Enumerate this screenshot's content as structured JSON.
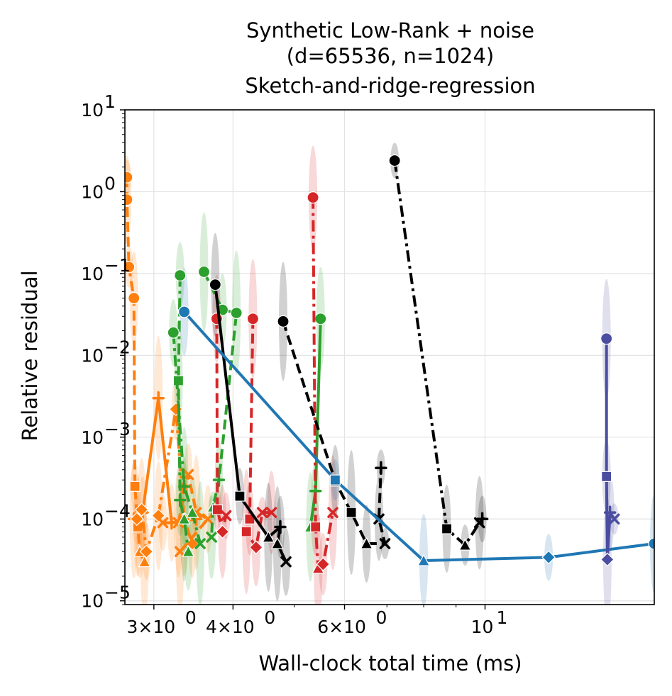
{
  "chart_data": {
    "type": "line",
    "title": [
      "Synthetic Low-Rank + noise",
      "(d=65536, n=1024)",
      "Sketch-and-ridge-regression"
    ],
    "xlabel": "Wall-clock total time (ms)",
    "ylabel": "Relative residual",
    "xscale": "log",
    "yscale": "log",
    "xlim": [
      2.7,
      18.5
    ],
    "ylim": [
      9e-06,
      10
    ],
    "grid": true,
    "x_ticks": [
      {
        "value": 3,
        "base": "3×10",
        "exp": "0"
      },
      {
        "value": 4,
        "base": "4×10",
        "exp": "0"
      },
      {
        "value": 6,
        "base": "6×10",
        "exp": "0"
      },
      {
        "value": 10,
        "base": "10",
        "exp": "1"
      }
    ],
    "y_ticks": [
      {
        "value": 1e-05,
        "base": "10",
        "exp": "−5"
      },
      {
        "value": 0.0001,
        "base": "10",
        "exp": "−4"
      },
      {
        "value": 0.001,
        "base": "10",
        "exp": "−3"
      },
      {
        "value": 0.01,
        "base": "10",
        "exp": "−2"
      },
      {
        "value": 0.1,
        "base": "10",
        "exp": "−1"
      },
      {
        "value": 1,
        "base": "10",
        "exp": "0"
      },
      {
        "value": 10,
        "base": "10",
        "exp": "1"
      }
    ],
    "series": [
      {
        "name": "orange-solid",
        "color": "#ff7f0e",
        "dash": "solid",
        "points": [
          {
            "x": 2.79,
            "y": 0.0001,
            "m": "plus"
          },
          {
            "x": 2.88,
            "y": 0.00012,
            "m": "plus"
          },
          {
            "x": 3.05,
            "y": 0.003,
            "m": "plus"
          },
          {
            "x": 3.2,
            "y": 9e-05,
            "m": "plus"
          },
          {
            "x": 3.5,
            "y": 0.0001,
            "m": "plus"
          }
        ]
      },
      {
        "name": "orange-dashed",
        "color": "#ff7f0e",
        "dash": "dashed",
        "points": [
          {
            "x": 2.72,
            "y": 1.5,
            "m": "circle"
          },
          {
            "x": 2.72,
            "y": 0.8,
            "m": "circle"
          },
          {
            "x": 2.74,
            "y": 0.12,
            "m": "circle"
          },
          {
            "x": 2.79,
            "y": 0.05,
            "m": "circle"
          },
          {
            "x": 2.8,
            "y": 0.00025,
            "m": "square"
          },
          {
            "x": 2.83,
            "y": 8e-05,
            "m": "square"
          },
          {
            "x": 2.85,
            "y": 4e-05,
            "m": "triangle"
          },
          {
            "x": 2.9,
            "y": 3e-05,
            "m": "triangle"
          }
        ]
      },
      {
        "name": "orange-dashdot",
        "color": "#ff7f0e",
        "dash": "dashdot",
        "points": [
          {
            "x": 2.82,
            "y": 0.0001,
            "m": "diamond"
          },
          {
            "x": 2.87,
            "y": 0.00013,
            "m": "diamond"
          },
          {
            "x": 2.92,
            "y": 4e-05,
            "m": "diamond"
          },
          {
            "x": 3.05,
            "y": 0.00011,
            "m": "diamond"
          },
          {
            "x": 3.25,
            "y": 0.0022,
            "m": "diamond"
          },
          {
            "x": 3.35,
            "y": 0.0001,
            "m": "diamond"
          },
          {
            "x": 3.45,
            "y": 5e-05,
            "m": "diamond"
          }
        ]
      },
      {
        "name": "orange-x",
        "color": "#ff7f0e",
        "dash": "dashed",
        "points": [
          {
            "x": 3.1,
            "y": 9e-05,
            "m": "x"
          },
          {
            "x": 3.28,
            "y": 9e-05,
            "m": "x"
          },
          {
            "x": 3.4,
            "y": 0.00035,
            "m": "x"
          },
          {
            "x": 3.5,
            "y": 0.00012,
            "m": "x"
          },
          {
            "x": 3.65,
            "y": 0.0001,
            "m": "x"
          },
          {
            "x": 3.3,
            "y": 4e-05,
            "m": "x"
          }
        ]
      },
      {
        "name": "green-dashdot-a",
        "color": "#2ca02c",
        "dash": "dashdot",
        "points": [
          {
            "x": 3.3,
            "y": 0.095,
            "m": "circle"
          },
          {
            "x": 3.28,
            "y": 0.0049,
            "m": "square"
          },
          {
            "x": 3.3,
            "y": 0.00017,
            "m": "plus"
          },
          {
            "x": 3.35,
            "y": 0.0001,
            "m": "triangle"
          },
          {
            "x": 3.4,
            "y": 4e-05,
            "m": "triangle"
          }
        ]
      },
      {
        "name": "green-dashdot-b",
        "color": "#2ca02c",
        "dash": "dashdot",
        "points": [
          {
            "x": 3.22,
            "y": 0.019,
            "m": "circle"
          },
          {
            "x": 3.35,
            "y": 0.00025,
            "m": "plus"
          },
          {
            "x": 3.45,
            "y": 0.00012,
            "m": "triangle"
          },
          {
            "x": 3.55,
            "y": 5e-05,
            "m": "x"
          }
        ]
      },
      {
        "name": "green-dashed",
        "color": "#2ca02c",
        "dash": "dashed",
        "points": [
          {
            "x": 3.6,
            "y": 0.105,
            "m": "circle"
          },
          {
            "x": 3.85,
            "y": 0.036,
            "m": "circle"
          },
          {
            "x": 4.05,
            "y": 0.033,
            "m": "circle"
          },
          {
            "x": 3.8,
            "y": 0.0003,
            "m": "plus"
          },
          {
            "x": 3.72,
            "y": 0.00014,
            "m": "triangle"
          },
          {
            "x": 3.7,
            "y": 6e-05,
            "m": "x"
          }
        ]
      },
      {
        "name": "green-solid",
        "color": "#2ca02c",
        "dash": "solid",
        "points": [
          {
            "x": 5.5,
            "y": 0.028,
            "m": "circle"
          },
          {
            "x": 5.4,
            "y": 0.00022,
            "m": "plus"
          },
          {
            "x": 5.3,
            "y": 8e-05,
            "m": "triangle"
          }
        ]
      },
      {
        "name": "red-dashed",
        "color": "#d62728",
        "dash": "dashed",
        "points": [
          {
            "x": 3.77,
            "y": 0.028,
            "m": "circle"
          },
          {
            "x": 3.78,
            "y": 0.00013,
            "m": "square"
          },
          {
            "x": 3.85,
            "y": 7e-05,
            "m": "diamond"
          },
          {
            "x": 3.9,
            "y": 0.00011,
            "m": "x"
          }
        ]
      },
      {
        "name": "red-dashed-b",
        "color": "#d62728",
        "dash": "dashed",
        "points": [
          {
            "x": 4.3,
            "y": 0.028,
            "m": "circle"
          },
          {
            "x": 4.25,
            "y": 0.0001,
            "m": "square"
          },
          {
            "x": 4.2,
            "y": 7e-05,
            "m": "square"
          },
          {
            "x": 4.35,
            "y": 4.5e-05,
            "m": "diamond"
          },
          {
            "x": 4.45,
            "y": 0.00012,
            "m": "x"
          },
          {
            "x": 4.6,
            "y": 0.00012,
            "m": "x"
          }
        ]
      },
      {
        "name": "red-dashdot",
        "color": "#d62728",
        "dash": "dashdot",
        "points": [
          {
            "x": 5.35,
            "y": 0.85,
            "m": "circle"
          },
          {
            "x": 5.4,
            "y": 8e-05,
            "m": "square"
          },
          {
            "x": 5.45,
            "y": 2.5e-05,
            "m": "triangle"
          },
          {
            "x": 5.55,
            "y": 2.8e-05,
            "m": "diamond"
          },
          {
            "x": 5.75,
            "y": 0.00012,
            "m": "x"
          }
        ]
      },
      {
        "name": "black-solid",
        "color": "#000000",
        "dash": "solid",
        "points": [
          {
            "x": 3.75,
            "y": 0.073,
            "m": "circle"
          },
          {
            "x": 4.1,
            "y": 0.00019,
            "m": "square"
          },
          {
            "x": 4.55,
            "y": 6e-05,
            "m": "triangle"
          },
          {
            "x": 4.75,
            "y": 8e-05,
            "m": "plus"
          },
          {
            "x": 4.7,
            "y": 5e-05,
            "m": "triangle"
          },
          {
            "x": 4.85,
            "y": 3e-05,
            "m": "x"
          }
        ]
      },
      {
        "name": "black-dashed",
        "color": "#000000",
        "dash": "dashed",
        "points": [
          {
            "x": 4.8,
            "y": 0.026,
            "m": "circle"
          },
          {
            "x": 5.8,
            "y": 0.00029,
            "m": "square"
          },
          {
            "x": 6.15,
            "y": 0.00012,
            "m": "square"
          },
          {
            "x": 6.5,
            "y": 5e-05,
            "m": "triangle"
          },
          {
            "x": 6.95,
            "y": 5e-05,
            "m": "x"
          },
          {
            "x": 6.8,
            "y": 0.0001,
            "m": "x"
          },
          {
            "x": 6.85,
            "y": 0.00042,
            "m": "plus"
          }
        ]
      },
      {
        "name": "black-dashdot",
        "color": "#000000",
        "dash": "dashdot",
        "points": [
          {
            "x": 7.2,
            "y": 2.4,
            "m": "circle"
          },
          {
            "x": 8.7,
            "y": 7.6e-05,
            "m": "square"
          },
          {
            "x": 9.3,
            "y": 4.8e-05,
            "m": "triangle"
          },
          {
            "x": 9.8,
            "y": 9e-05,
            "m": "x"
          },
          {
            "x": 9.9,
            "y": 0.0001,
            "m": "plus"
          }
        ]
      },
      {
        "name": "blue-solid",
        "color": "#1f77b4",
        "dash": "solid",
        "points": [
          {
            "x": 3.35,
            "y": 0.034,
            "m": "circle"
          },
          {
            "x": 5.8,
            "y": 0.0003,
            "m": "square"
          },
          {
            "x": 8.0,
            "y": 3.1e-05,
            "m": "triangle"
          },
          {
            "x": 12.6,
            "y": 3.4e-05,
            "m": "diamond"
          },
          {
            "x": 18.5,
            "y": 5e-05,
            "m": "circle"
          }
        ]
      },
      {
        "name": "purple-solid",
        "color": "#4b4ea0",
        "dash": "solid",
        "points": [
          {
            "x": 15.55,
            "y": 0.016,
            "m": "circle"
          },
          {
            "x": 15.55,
            "y": 0.00033,
            "m": "square"
          },
          {
            "x": 15.6,
            "y": 3.2e-05,
            "m": "diamond"
          },
          {
            "x": 15.75,
            "y": 0.00012,
            "m": "plus"
          },
          {
            "x": 16.0,
            "y": 0.0001,
            "m": "x"
          }
        ]
      }
    ]
  }
}
